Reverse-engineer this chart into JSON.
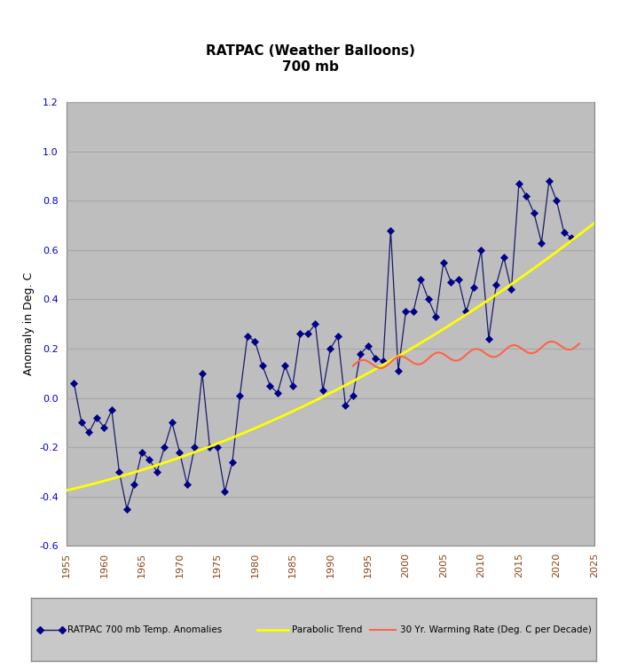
{
  "title_line1": "RATPAC (Weather Balloons)",
  "title_line2": "700 mb",
  "ylabel": "Anomaly in Deg. C",
  "xlim": [
    1955,
    2025
  ],
  "ylim": [
    -0.6,
    1.2
  ],
  "xticks": [
    1955,
    1960,
    1965,
    1970,
    1975,
    1980,
    1985,
    1990,
    1995,
    2000,
    2005,
    2010,
    2015,
    2020,
    2025
  ],
  "yticks": [
    -0.6,
    -0.4,
    -0.2,
    0.0,
    0.2,
    0.4,
    0.6,
    0.8,
    1.0,
    1.2
  ],
  "bg_color": "#BEBEBE",
  "outer_bg": "#FFFFFF",
  "anomaly_years": [
    1956,
    1957,
    1958,
    1959,
    1960,
    1961,
    1962,
    1963,
    1964,
    1965,
    1966,
    1967,
    1968,
    1969,
    1970,
    1971,
    1972,
    1973,
    1974,
    1975,
    1976,
    1977,
    1978,
    1979,
    1980,
    1981,
    1982,
    1983,
    1984,
    1985,
    1986,
    1987,
    1988,
    1989,
    1990,
    1991,
    1992,
    1993,
    1994,
    1995,
    1996,
    1997,
    1998,
    1999,
    2000,
    2001,
    2002,
    2003,
    2004,
    2005,
    2006,
    2007,
    2008,
    2009,
    2010,
    2011,
    2012,
    2013,
    2014,
    2015,
    2016,
    2017,
    2018,
    2019,
    2020,
    2021,
    2022
  ],
  "anomaly_values": [
    0.06,
    -0.1,
    -0.14,
    -0.08,
    -0.12,
    -0.05,
    -0.3,
    -0.45,
    -0.35,
    -0.22,
    -0.25,
    -0.3,
    -0.2,
    -0.1,
    -0.22,
    -0.35,
    -0.2,
    0.1,
    -0.2,
    -0.2,
    -0.38,
    -0.26,
    0.01,
    0.25,
    0.23,
    0.13,
    0.05,
    0.02,
    0.13,
    0.05,
    0.26,
    0.26,
    0.3,
    0.03,
    0.2,
    0.25,
    -0.03,
    0.01,
    0.18,
    0.21,
    0.16,
    0.15,
    0.68,
    0.11,
    0.35,
    0.35,
    0.48,
    0.4,
    0.33,
    0.55,
    0.47,
    0.48,
    0.35,
    0.45,
    0.6,
    0.24,
    0.46,
    0.57,
    0.44,
    0.87,
    0.82,
    0.75,
    0.63,
    0.88,
    0.8,
    0.67,
    0.65
  ],
  "anomaly_color": "#00008B",
  "anomaly_linecolor": "#191970",
  "anomaly_marker": "D",
  "anomaly_markersize": 4,
  "parabola_color": "#FFFF00",
  "parabola_linewidth": 2.0,
  "warming_color": "#FF6347",
  "warming_linewidth": 1.5,
  "legend_bg": "#C8C8C8",
  "legend_edge": "#888888",
  "grid_color": "#A8A8A8",
  "grid_linewidth": 0.8,
  "xtick_color": "#8B4513",
  "ytick_color": "#0000CD",
  "title_fontsize": 11,
  "axis_label_fontsize": 9,
  "tick_fontsize": 8
}
